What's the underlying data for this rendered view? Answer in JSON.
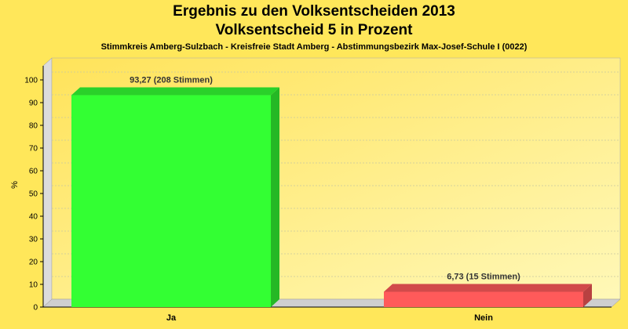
{
  "chart_data": {
    "type": "bar",
    "title": "Ergebnis zu den Volksentscheiden 2013",
    "subtitle": "Volksentscheid 5 in Prozent",
    "subtitle2": "Stimmkreis Amberg-Sulzbach - Kreisfreie Stadt Amberg - Abstimmungsbezirk Max-Josef-Schule I (0022)",
    "ylabel": "%",
    "xlabel": "",
    "ylim": [
      0,
      100
    ],
    "yticks": [
      0,
      10,
      20,
      30,
      40,
      50,
      60,
      70,
      80,
      90,
      100
    ],
    "categories": [
      "Ja",
      "Nein"
    ],
    "values": [
      93.27,
      6.73
    ],
    "data_labels": [
      "93,27 (208 Stimmen)",
      "6,73 (15 Stimmen)"
    ],
    "colors": [
      "#33ff33",
      "#ff5a5a"
    ],
    "grid": true
  }
}
